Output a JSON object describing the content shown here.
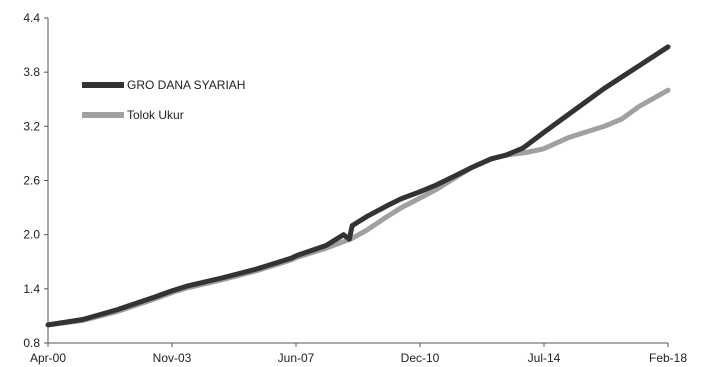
{
  "chart_data": {
    "type": "line",
    "title": "",
    "xlabel": "",
    "ylabel": "",
    "x_tick_labels": [
      "Apr-00",
      "Nov-03",
      "Jun-07",
      "Dec-10",
      "Jul-14",
      "Feb-18"
    ],
    "y_tick_labels": [
      "0.8",
      "1.4",
      "2.0",
      "2.6",
      "3.2",
      "3.8",
      "4.4"
    ],
    "ylim": [
      0.8,
      4.4
    ],
    "xlim": [
      "2000-04",
      "2018-02"
    ],
    "grid": false,
    "legend_position": "upper-left",
    "series": [
      {
        "name": "GRO DANA SYARIAH",
        "color": "#333333",
        "points": [
          [
            "2000-04",
            1.0
          ],
          [
            "2001-04",
            1.06
          ],
          [
            "2002-04",
            1.17
          ],
          [
            "2003-04",
            1.3
          ],
          [
            "2003-11",
            1.38
          ],
          [
            "2004-04",
            1.43
          ],
          [
            "2005-04",
            1.52
          ],
          [
            "2006-04",
            1.62
          ],
          [
            "2007-04",
            1.74
          ],
          [
            "2007-06",
            1.77
          ],
          [
            "2008-04",
            1.88
          ],
          [
            "2008-10",
            2.0
          ],
          [
            "2008-12",
            1.95
          ],
          [
            "2009-01",
            2.1
          ],
          [
            "2009-06",
            2.2
          ],
          [
            "2010-01",
            2.32
          ],
          [
            "2010-06",
            2.4
          ],
          [
            "2010-12",
            2.47
          ],
          [
            "2011-06",
            2.55
          ],
          [
            "2012-01",
            2.66
          ],
          [
            "2012-06",
            2.74
          ],
          [
            "2013-01",
            2.84
          ],
          [
            "2013-06",
            2.88
          ],
          [
            "2013-12",
            2.96
          ],
          [
            "2014-07",
            3.13
          ],
          [
            "2015-04",
            3.34
          ],
          [
            "2016-04",
            3.62
          ],
          [
            "2017-04",
            3.87
          ],
          [
            "2018-02",
            4.08
          ]
        ]
      },
      {
        "name": "Tolok Ukur",
        "color": "#a0a0a0",
        "points": [
          [
            "2000-04",
            1.0
          ],
          [
            "2001-04",
            1.05
          ],
          [
            "2002-04",
            1.15
          ],
          [
            "2003-04",
            1.28
          ],
          [
            "2003-11",
            1.36
          ],
          [
            "2004-04",
            1.41
          ],
          [
            "2005-04",
            1.5
          ],
          [
            "2006-04",
            1.6
          ],
          [
            "2007-04",
            1.72
          ],
          [
            "2007-06",
            1.75
          ],
          [
            "2008-04",
            1.85
          ],
          [
            "2009-01",
            1.96
          ],
          [
            "2009-06",
            2.05
          ],
          [
            "2010-01",
            2.2
          ],
          [
            "2010-06",
            2.3
          ],
          [
            "2010-12",
            2.4
          ],
          [
            "2011-06",
            2.5
          ],
          [
            "2012-01",
            2.64
          ],
          [
            "2012-06",
            2.74
          ],
          [
            "2013-01",
            2.84
          ],
          [
            "2013-06",
            2.88
          ],
          [
            "2014-01",
            2.91
          ],
          [
            "2014-07",
            2.95
          ],
          [
            "2015-04",
            3.08
          ],
          [
            "2016-04",
            3.2
          ],
          [
            "2016-10",
            3.28
          ],
          [
            "2017-04",
            3.42
          ],
          [
            "2018-02",
            3.6
          ]
        ]
      }
    ]
  }
}
